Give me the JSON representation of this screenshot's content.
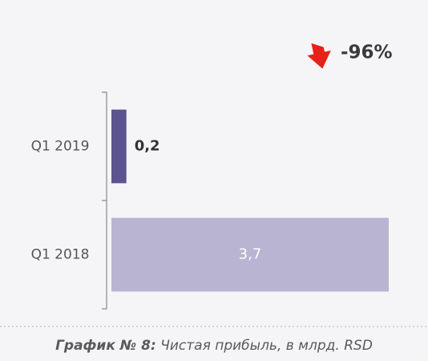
{
  "chart_data": {
    "type": "hbar",
    "categories": [
      "Q1 2019",
      "Q1 2018"
    ],
    "values": [
      0.2,
      3.7
    ],
    "value_labels": [
      "0,2",
      "3,7"
    ],
    "colors": [
      "#5b5490",
      "#b9b4d1"
    ],
    "annotation": "-96%",
    "caption": {
      "label": "График № 8:",
      "text": "Чистая прибыль, в млрд. RSD"
    }
  }
}
